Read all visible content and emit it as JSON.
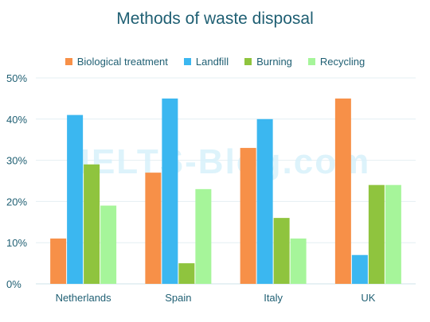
{
  "chart_data": {
    "type": "bar",
    "title": "Methods of waste disposal",
    "categories": [
      "Netherlands",
      "Spain",
      "Italy",
      "UK"
    ],
    "series": [
      {
        "name": "Biological treatment",
        "color": "#f79048",
        "values": [
          11,
          27,
          33,
          45
        ]
      },
      {
        "name": "Landfill",
        "color": "#3bb7f0",
        "values": [
          41,
          45,
          40,
          7
        ]
      },
      {
        "name": "Burning",
        "color": "#8fc43e",
        "values": [
          29,
          5,
          16,
          24
        ]
      },
      {
        "name": "Recycling",
        "color": "#a6f59a",
        "values": [
          19,
          23,
          11,
          24
        ]
      }
    ],
    "ylim": [
      0,
      50
    ],
    "yticks": [
      "0%",
      "10%",
      "20%",
      "30%",
      "40%",
      "50%"
    ],
    "ytick_values": [
      0,
      10,
      20,
      30,
      40,
      50
    ],
    "grid": true,
    "legend_position": "top-center",
    "watermark": "IELTS-Blog.com"
  }
}
